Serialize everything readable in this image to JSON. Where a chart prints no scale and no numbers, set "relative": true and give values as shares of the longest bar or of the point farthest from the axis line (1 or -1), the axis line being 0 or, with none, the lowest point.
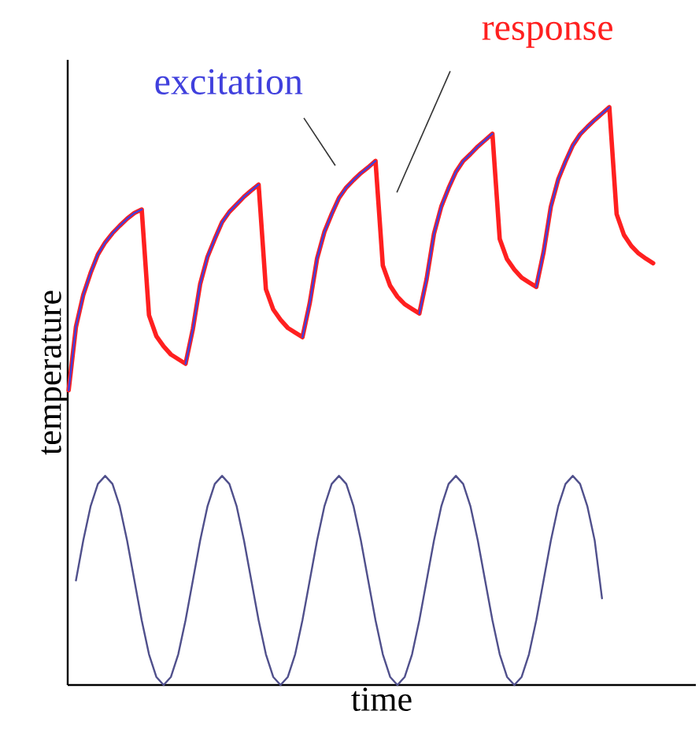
{
  "chart_data": {
    "type": "line",
    "relative": true,
    "xlabel": "time",
    "ylabel": "temperature",
    "categories": [
      null,
      null,
      null,
      null,
      null,
      null,
      null,
      null,
      null,
      null,
      null,
      null,
      null,
      null,
      null,
      null,
      null,
      null,
      null,
      null,
      null,
      null,
      null,
      null,
      null,
      null,
      null,
      null,
      null,
      null,
      null,
      null,
      null,
      null,
      null,
      null,
      null,
      null,
      null,
      null,
      null,
      null,
      null,
      null,
      null,
      null,
      null,
      null,
      null,
      null,
      null,
      null,
      null,
      null,
      null,
      null,
      null,
      null,
      null,
      null,
      null,
      null,
      null,
      null,
      null,
      null,
      null,
      null,
      null,
      null,
      null,
      null,
      null,
      null,
      null,
      null,
      null,
      null,
      null,
      null,
      null
    ],
    "series": [
      {
        "name": "response",
        "color": "#ff2020",
        "values": [
          0.51,
          0.62,
          0.675,
          0.713,
          0.745,
          0.766,
          0.782,
          0.795,
          0.807,
          0.817,
          0.823,
          0.64,
          0.604,
          0.586,
          0.572,
          0.564,
          0.556,
          0.616,
          0.694,
          0.741,
          0.772,
          0.801,
          0.819,
          0.832,
          0.845,
          0.856,
          0.866,
          0.685,
          0.65,
          0.632,
          0.618,
          0.61,
          0.602,
          0.661,
          0.738,
          0.784,
          0.815,
          0.843,
          0.861,
          0.874,
          0.886,
          0.896,
          0.907,
          0.726,
          0.691,
          0.672,
          0.659,
          0.651,
          0.643,
          0.703,
          0.781,
          0.828,
          0.86,
          0.888,
          0.907,
          0.919,
          0.932,
          0.943,
          0.954,
          0.772,
          0.737,
          0.719,
          0.705,
          0.697,
          0.689,
          0.749,
          0.828,
          0.875,
          0.906,
          0.934,
          0.953,
          0.966,
          0.978,
          0.989,
          1.0,
          0.815,
          0.779,
          0.76,
          0.747,
          0.738,
          0.73
        ]
      },
      {
        "name": "excitation",
        "color": "#4040dd",
        "values": [
          0.51,
          0.62,
          0.675,
          0.713,
          0.745,
          0.766,
          0.782,
          0.795,
          0.807,
          0.817,
          0.823,
          null,
          null,
          null,
          null,
          null,
          0.556,
          0.616,
          0.694,
          0.741,
          0.772,
          0.801,
          0.819,
          0.832,
          0.845,
          0.856,
          0.866,
          null,
          null,
          null,
          null,
          null,
          0.602,
          0.661,
          0.738,
          0.784,
          0.815,
          0.843,
          0.861,
          0.874,
          0.886,
          0.896,
          0.907,
          null,
          null,
          null,
          null,
          null,
          0.643,
          0.703,
          0.781,
          0.828,
          0.86,
          0.888,
          0.907,
          0.919,
          0.932,
          0.943,
          0.954,
          null,
          null,
          null,
          null,
          null,
          0.689,
          0.749,
          0.828,
          0.875,
          0.906,
          0.934,
          0.953,
          0.966,
          0.978,
          0.989,
          1.0,
          null,
          null,
          null,
          null,
          null,
          null
        ]
      },
      {
        "color": "#50508c",
        "values": [
          null,
          0.181,
          0.25,
          0.309,
          0.348,
          0.362,
          0.348,
          0.309,
          0.25,
          0.181,
          0.112,
          0.053,
          0.014,
          0,
          0.014,
          0.053,
          0.112,
          0.181,
          0.25,
          0.309,
          0.348,
          0.362,
          0.348,
          0.309,
          0.25,
          0.181,
          0.112,
          0.053,
          0.014,
          0,
          0.014,
          0.053,
          0.112,
          0.181,
          0.25,
          0.309,
          0.348,
          0.362,
          0.348,
          0.309,
          0.25,
          0.181,
          0.112,
          0.053,
          0.014,
          0,
          0.014,
          0.053,
          0.112,
          0.181,
          0.25,
          0.309,
          0.348,
          0.362,
          0.348,
          0.309,
          0.25,
          0.181,
          0.112,
          0.053,
          0.014,
          0,
          0.014,
          0.053,
          0.112,
          0.181,
          0.25,
          0.309,
          0.348,
          0.362,
          0.348,
          0.309,
          0.25,
          0.15,
          null,
          null,
          null,
          null,
          null,
          null,
          null
        ]
      }
    ]
  }
}
